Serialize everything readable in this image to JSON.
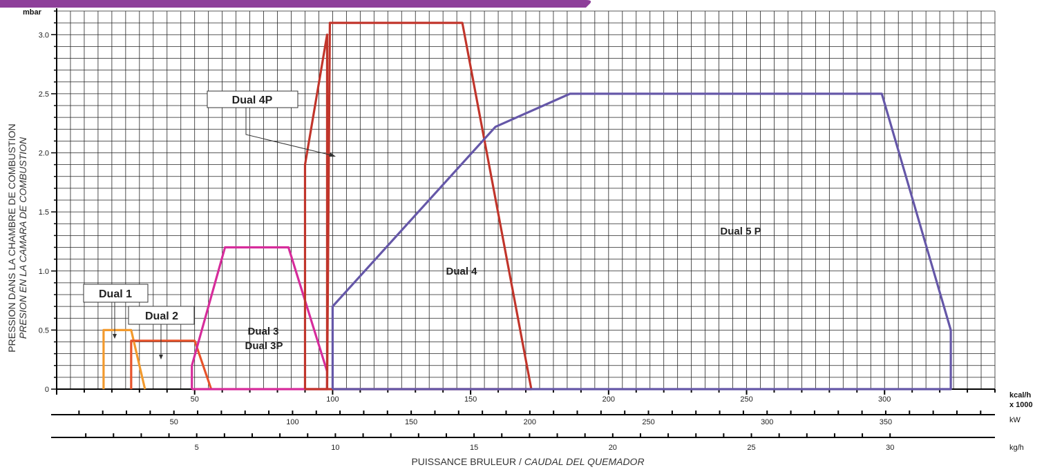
{
  "chart_data": {
    "type": "line",
    "ylabel_unit": "mbar",
    "ylabel": "PRESSION DANS LA CHAMBRE DE COMBUSTION",
    "ylabel_italic": "PRESION EN LA CAMARA DE COMBUSTION",
    "xlabel": "PUISSANCE BRULEUR / ",
    "xlabel_italic": "CAUDAL DEL QUEMADOR",
    "ylim": [
      0,
      3.2
    ],
    "xlim": [
      0,
      340
    ],
    "yticks": [
      "0",
      "0.5",
      "1.0",
      "1.5",
      "2.0",
      "2.5",
      "3.0"
    ],
    "grid": true,
    "axes": [
      {
        "unit": "kcal/h",
        "unit2": "x 1000",
        "ticks": [
          50,
          100,
          150,
          200,
          250,
          300
        ],
        "tick_labels": [
          "50",
          "100",
          "150",
          "200",
          "250",
          "300"
        ]
      },
      {
        "unit": "kW",
        "ticks": [
          50,
          100,
          150,
          200,
          250,
          300,
          350
        ],
        "tick_labels": [
          "50",
          "100",
          "150",
          "200",
          "250",
          "300",
          "350"
        ]
      },
      {
        "unit": "kg/h",
        "ticks": [
          5,
          10,
          15,
          20,
          25,
          30
        ],
        "tick_labels": [
          "5",
          "10",
          "15",
          "20",
          "25",
          "30"
        ]
      }
    ],
    "series": [
      {
        "name": "Dual 1",
        "color": "#f39a2d",
        "x": [
          17,
          17,
          27,
          32,
          32
        ],
        "y": [
          0,
          0.5,
          0.5,
          0,
          0
        ]
      },
      {
        "name": "Dual 2",
        "color": "#e8532a",
        "x": [
          27,
          27,
          50,
          56,
          56
        ],
        "y": [
          0,
          0.41,
          0.41,
          0,
          0
        ]
      },
      {
        "name": "Dual 3 / Dual 3P",
        "color": "#d62c9b",
        "x": [
          49,
          49,
          61,
          84,
          98,
          98,
          49
        ],
        "y": [
          0,
          0.2,
          1.2,
          1.2,
          0.15,
          0,
          0
        ]
      },
      {
        "name": "Dual 4P",
        "color": "#c1352b",
        "x": [
          90,
          90,
          98,
          98,
          90
        ],
        "y": [
          0,
          1.9,
          3.0,
          0,
          0
        ]
      },
      {
        "name": "Dual 4",
        "color": "#c1352b",
        "x": [
          98,
          99,
          147,
          172,
          98
        ],
        "y": [
          0,
          3.1,
          3.1,
          0,
          0
        ]
      },
      {
        "name": "Dual 5 P",
        "color": "#6557a8",
        "x": [
          100,
          100,
          159,
          186,
          299,
          324,
          324,
          100
        ],
        "y": [
          0,
          0.7,
          2.22,
          2.5,
          2.5,
          0.5,
          0,
          0
        ]
      }
    ],
    "annotations": [
      "Dual 1",
      "Dual 2",
      "Dual 3",
      "Dual 3P",
      "Dual 4P",
      "Dual 4",
      "Dual 5 P"
    ]
  }
}
